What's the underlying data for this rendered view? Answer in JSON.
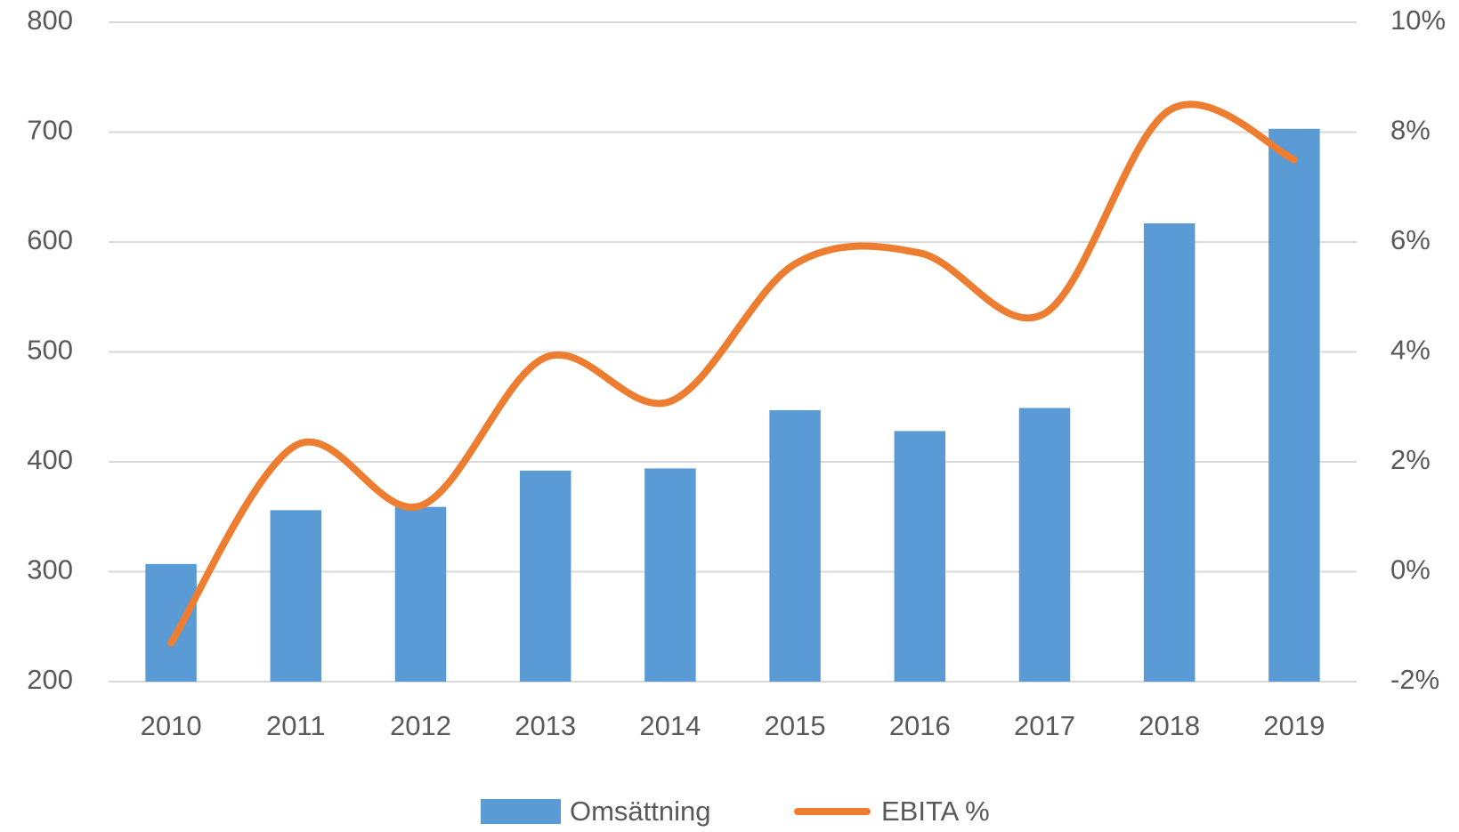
{
  "chart_data": {
    "type": "bar",
    "categories": [
      "2010",
      "2011",
      "2012",
      "2013",
      "2014",
      "2015",
      "2016",
      "2017",
      "2018",
      "2019"
    ],
    "series": [
      {
        "name": "Omsättning",
        "color": "#5b9bd5",
        "values": [
          307,
          356,
          359,
          392,
          394,
          447,
          428,
          449,
          617,
          703
        ]
      },
      {
        "name": "EBITA %",
        "color": "#ed7d31",
        "type": "line",
        "axis": "y2",
        "smooth": true,
        "values": [
          -1.3,
          2.3,
          1.2,
          3.9,
          3.1,
          5.6,
          5.8,
          4.7,
          8.4,
          7.5
        ]
      }
    ],
    "ylim": [
      200,
      800
    ],
    "yticks": [
      200,
      300,
      400,
      500,
      600,
      700,
      800
    ],
    "y2lim": [
      -2,
      10
    ],
    "y2ticks": [
      {
        "value": -2,
        "label": "-2%"
      },
      {
        "value": 0,
        "label": "0%"
      },
      {
        "value": 2,
        "label": "2%"
      },
      {
        "value": 4,
        "label": "4%"
      },
      {
        "value": 6,
        "label": "6%"
      },
      {
        "value": 8,
        "label": "8%"
      },
      {
        "value": 10,
        "label": "10%"
      }
    ],
    "grid": true,
    "legend": "bottom"
  }
}
